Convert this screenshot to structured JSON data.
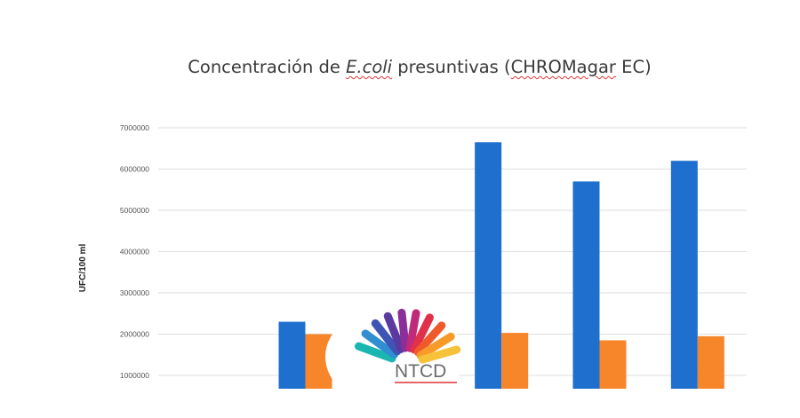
{
  "chart_data": {
    "type": "bar",
    "title": {
      "prefix": "Concentración de ",
      "italic": "E.coli",
      "middle": " presuntivas (",
      "squiggly": "CHROMagar",
      "suffix": " EC)"
    },
    "ylabel": "UFC/100 ml",
    "xlabel": "",
    "ylim": [
      1000000,
      7000000
    ],
    "y_ticks": [
      "1000000",
      "2000000",
      "3000000",
      "4000000",
      "5000000",
      "6000000",
      "7000000"
    ],
    "categories": [
      "",
      "",
      "",
      "",
      "",
      ""
    ],
    "series": [
      {
        "color": "#1f6fcf",
        "values": [
          null,
          2300000,
          null,
          6650000,
          5700000,
          6200000
        ]
      },
      {
        "color": "#f7852a",
        "values": [
          null,
          2000000,
          null,
          2030000,
          1850000,
          1950000
        ]
      }
    ],
    "grid": true
  },
  "logo": {
    "text": "NTCD"
  }
}
